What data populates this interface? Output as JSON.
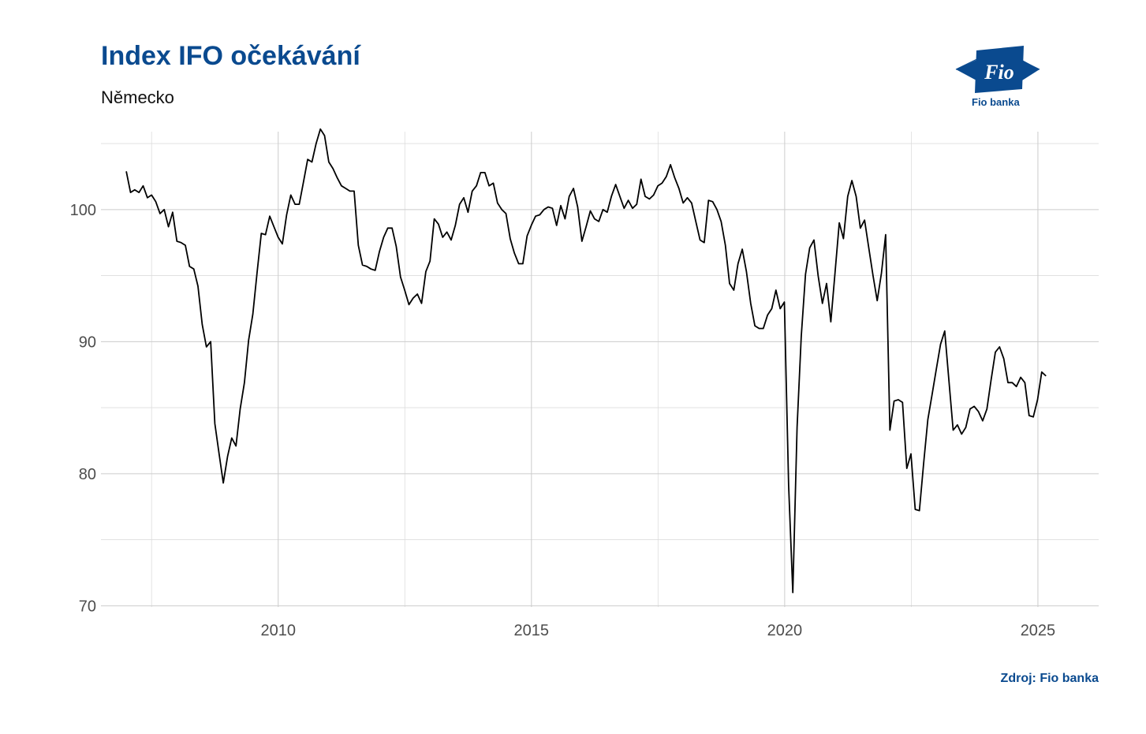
{
  "header": {
    "title": "Index IFO očekávání",
    "subtitle": "Německo"
  },
  "logo": {
    "mark_text": "Fio",
    "caption": "Fio banka"
  },
  "footer": {
    "source": "Zdroj: Fio banka"
  },
  "colors": {
    "brand": "#0a4a8f",
    "line": "#000000",
    "grid_major": "#cccccc",
    "grid_minor": "#dddddd"
  },
  "chart_data": {
    "type": "line",
    "title": "Index IFO očekávání",
    "subtitle": "Německo",
    "xlabel": "",
    "ylabel": "",
    "xlim": [
      2006.5,
      2026.2
    ],
    "ylim": [
      69.9,
      105.9
    ],
    "x_ticks": [
      2010,
      2015,
      2020,
      2025
    ],
    "y_ticks": [
      70,
      80,
      90,
      100
    ],
    "grid": true,
    "legend": "none",
    "series": [
      {
        "start": 2007.0,
        "step": 0.0833,
        "values": [
          102.9,
          101.3,
          101.5,
          101.3,
          101.8,
          100.9,
          101.1,
          100.6,
          99.7,
          100.0,
          98.7,
          99.8,
          97.6,
          97.5,
          97.3,
          95.7,
          95.5,
          94.2,
          91.3,
          89.6,
          90.0,
          83.8,
          81.5,
          79.3,
          81.3,
          82.7,
          82.1,
          84.9,
          86.9,
          90.1,
          92.1,
          95.2,
          98.2,
          98.1,
          99.5,
          98.7,
          97.9,
          97.4,
          99.6,
          101.1,
          100.4,
          100.4,
          102.1,
          103.8,
          103.6,
          105.0,
          106.1,
          105.6,
          103.6,
          103.1,
          102.4,
          101.8,
          101.6,
          101.4,
          101.4,
          97.3,
          95.8,
          95.7,
          95.5,
          95.4,
          96.8,
          97.9,
          98.6,
          98.6,
          97.2,
          94.9,
          93.9,
          92.8,
          93.3,
          93.6,
          92.9,
          95.3,
          96.1,
          99.3,
          98.9,
          97.9,
          98.3,
          97.7,
          98.8,
          100.4,
          100.9,
          99.8,
          101.4,
          101.8,
          102.8,
          102.8,
          101.8,
          102.0,
          100.5,
          100.0,
          99.7,
          97.8,
          96.7,
          95.9,
          95.9,
          98.0,
          98.8,
          99.5,
          99.6,
          100.0,
          100.2,
          100.1,
          98.8,
          100.3,
          99.3,
          101.0,
          101.6,
          100.2,
          97.6,
          98.7,
          99.9,
          99.3,
          99.1,
          100.0,
          99.8,
          101.0,
          101.9,
          101.0,
          100.1,
          100.7,
          100.1,
          100.4,
          102.3,
          101.0,
          100.8,
          101.1,
          101.8,
          102.0,
          102.5,
          103.4,
          102.4,
          101.6,
          100.5,
          100.9,
          100.5,
          99.1,
          97.7,
          97.5,
          100.7,
          100.6,
          100.0,
          99.1,
          97.3,
          94.4,
          93.9,
          95.9,
          97.0,
          95.3,
          92.9,
          91.2,
          91.0,
          91.0,
          92.0,
          92.5,
          93.9,
          92.5,
          93.0,
          79.1,
          71.0,
          83.5,
          90.4,
          95.1,
          97.1,
          97.7,
          95.0,
          92.9,
          94.4,
          91.5,
          95.2,
          99.0,
          97.8,
          101.0,
          102.2,
          101.0,
          98.6,
          99.2,
          97.1,
          95.0,
          93.1,
          95.2,
          98.1,
          83.3,
          85.5,
          85.6,
          85.4,
          80.4,
          81.5,
          77.3,
          77.2,
          80.8,
          84.1,
          86.0,
          87.9,
          89.8,
          90.8,
          87.0,
          83.3,
          83.7,
          83.0,
          83.5,
          84.9,
          85.1,
          84.7,
          84.0,
          84.9,
          87.1,
          89.2,
          89.6,
          88.7,
          86.9,
          86.9,
          86.6,
          87.3,
          86.9,
          84.4,
          84.3,
          85.6,
          87.7,
          87.4
        ]
      }
    ]
  }
}
